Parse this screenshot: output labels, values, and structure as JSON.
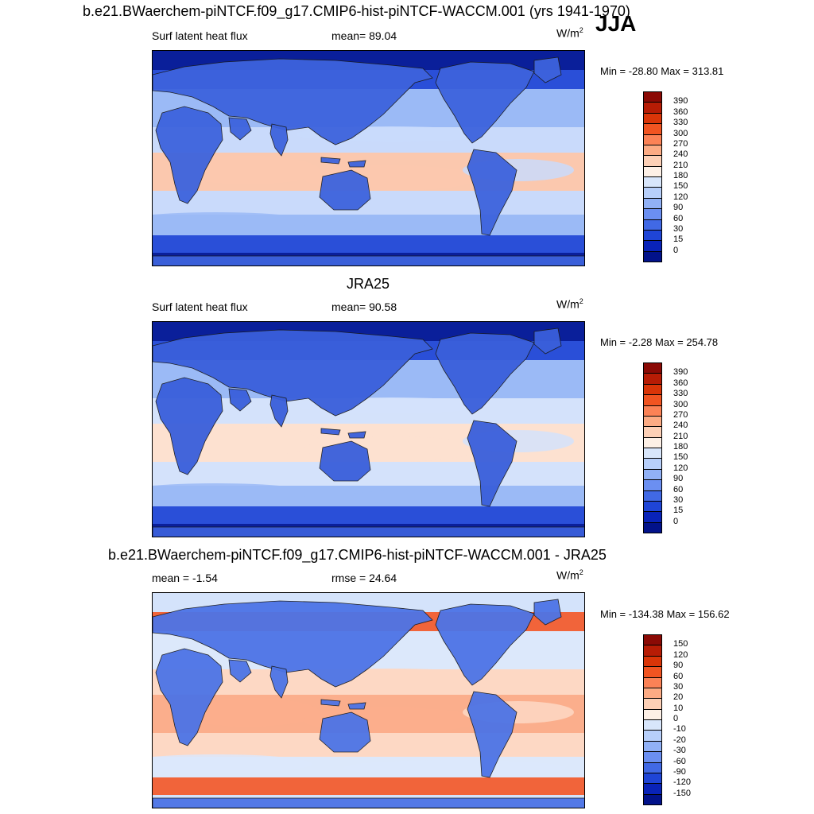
{
  "header": {
    "title": "b.e21.BWaerchem-piNTCF.f09_g17.CMIP6-hist-piNTCF-WACCM.001 (yrs 1941-1970)",
    "season": "JJA"
  },
  "panels": [
    {
      "id": "model",
      "title": "",
      "left_label": "Surf latent heat flux",
      "center_label": "mean=  89.04",
      "unit_base": "W/m",
      "unit_exp": "2",
      "minmax": "Min = -28.80 Max = 313.81",
      "levels": [
        "390",
        "360",
        "330",
        "300",
        "270",
        "240",
        "210",
        "180",
        "150",
        "120",
        "90",
        "60",
        "30",
        "15",
        "0"
      ],
      "colors": [
        "#8b0a05",
        "#b71c05",
        "#da3508",
        "#f15421",
        "#fb8256",
        "#fcab84",
        "#fdd0b6",
        "#fdf0e6",
        "#d8e6fb",
        "#b7cffa",
        "#91b1f6",
        "#6b8ff1",
        "#4169e5",
        "#1f45d6",
        "#0923b8",
        "#02128a"
      ],
      "fields": {
        "ocean_base": "#9bbaf6",
        "tropics": "#c9dafb",
        "warm_pool": "#fbc8ae",
        "high_lat": "#2a4fd8",
        "polar": "#0a1f9a",
        "land": "#3d63dd"
      }
    },
    {
      "id": "obs",
      "title": "JRA25",
      "left_label": "Surf latent heat flux",
      "center_label": "mean=  90.58",
      "unit_base": "W/m",
      "unit_exp": "2",
      "minmax": "Min =  -2.28 Max = 254.78",
      "levels": [
        "390",
        "360",
        "330",
        "300",
        "270",
        "240",
        "210",
        "180",
        "150",
        "120",
        "90",
        "60",
        "30",
        "15",
        "0"
      ],
      "colors": [
        "#8b0a05",
        "#b71c05",
        "#da3508",
        "#f15421",
        "#fb8256",
        "#fcab84",
        "#fdd0b6",
        "#fdf0e6",
        "#d8e6fb",
        "#b7cffa",
        "#91b1f6",
        "#6b8ff1",
        "#4169e5",
        "#1f45d6",
        "#0923b8",
        "#02128a"
      ],
      "fields": {
        "ocean_base": "#9bbaf6",
        "tropics": "#d4e2fb",
        "warm_pool": "#fde1d0",
        "high_lat": "#2a4fd8",
        "polar": "#0a1f9a",
        "land": "#3a5fdb"
      }
    },
    {
      "id": "diff",
      "title": "b.e21.BWaerchem-piNTCF.f09_g17.CMIP6-hist-piNTCF-WACCM.001 - JRA25",
      "left_label": "mean =  -1.54",
      "center_label": "rmse =  24.64",
      "unit_base": "W/m",
      "unit_exp": "2",
      "minmax": "Min = -134.38 Max = 156.62",
      "levels": [
        "150",
        "120",
        "90",
        "60",
        "30",
        "20",
        "10",
        "0",
        "-10",
        "-20",
        "-30",
        "-60",
        "-90",
        "-120",
        "-150"
      ],
      "colors": [
        "#8b0a05",
        "#b71c05",
        "#da3508",
        "#f15421",
        "#fb8256",
        "#fcab84",
        "#fdd0b6",
        "#fdf0e6",
        "#d8e6fb",
        "#b7cffa",
        "#91b1f6",
        "#6b8ff1",
        "#4169e5",
        "#1f45d6",
        "#0923b8",
        "#02128a"
      ],
      "fields": {
        "ocean_base": "#dce8fb",
        "tropics": "#fdd8c4",
        "warm_pool": "#fbae8c",
        "high_lat": "#f1643a",
        "polar": "#d4e3fb",
        "land": "#4d74e6"
      }
    }
  ],
  "chart_data": {
    "type": "heatmap",
    "variable": "Surf latent heat flux",
    "season": "JJA",
    "panels": [
      {
        "name": "model",
        "mean": 89.04,
        "min": -28.8,
        "max": 313.81,
        "units": "W/m2",
        "contour_levels": [
          0,
          15,
          30,
          60,
          90,
          120,
          150,
          180,
          210,
          240,
          270,
          300,
          330,
          360,
          390
        ]
      },
      {
        "name": "JRA25",
        "mean": 90.58,
        "min": -2.28,
        "max": 254.78,
        "units": "W/m2",
        "contour_levels": [
          0,
          15,
          30,
          60,
          90,
          120,
          150,
          180,
          210,
          240,
          270,
          300,
          330,
          360,
          390
        ]
      },
      {
        "name": "model - JRA25",
        "mean": -1.54,
        "rmse": 24.64,
        "min": -134.38,
        "max": 156.62,
        "units": "W/m2",
        "contour_levels": [
          -150,
          -120,
          -90,
          -60,
          -30,
          -20,
          -10,
          0,
          10,
          20,
          30,
          60,
          90,
          120,
          150
        ]
      }
    ]
  }
}
